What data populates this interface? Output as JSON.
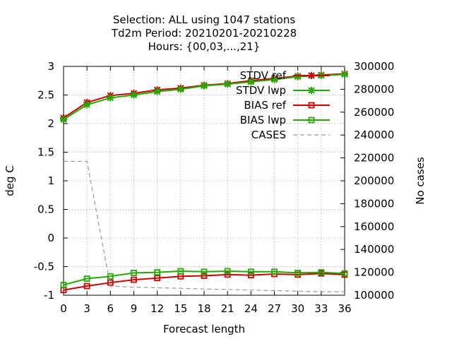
{
  "chart_data": {
    "type": "line",
    "title_lines": [
      "Selection: ALL using  1047 stations",
      "Td2m   Period: 20210201-20210228",
      "Hours: {00,03,...,21}"
    ],
    "xlabel": "Forecast length",
    "ylabel": "deg C",
    "y2label": "No cases",
    "grid": true,
    "legend_position": "top-right",
    "x": [
      0,
      3,
      6,
      9,
      12,
      15,
      18,
      21,
      24,
      27,
      30,
      33,
      36
    ],
    "xlim": [
      0,
      36
    ],
    "ylim": [
      -1,
      3
    ],
    "y2lim": [
      100000,
      300000
    ],
    "x_ticks": [
      0,
      3,
      6,
      9,
      12,
      15,
      18,
      21,
      24,
      27,
      30,
      33,
      36
    ],
    "y_ticks": [
      -1,
      -0.5,
      0,
      0.5,
      1,
      1.5,
      2,
      2.5,
      3
    ],
    "y2_ticks": [
      100000,
      120000,
      140000,
      160000,
      180000,
      200000,
      220000,
      240000,
      260000,
      280000,
      300000
    ],
    "series": [
      {
        "name": "STDV ref",
        "axis": "y",
        "marker": "star",
        "color": "#cc0000",
        "dash": "",
        "values": [
          2.1,
          2.37,
          2.49,
          2.53,
          2.59,
          2.62,
          2.67,
          2.7,
          2.75,
          2.79,
          2.83,
          2.85,
          2.87
        ]
      },
      {
        "name": "STDV lwp",
        "axis": "y",
        "marker": "star",
        "color": "#22aa00",
        "dash": "",
        "values": [
          2.07,
          2.33,
          2.45,
          2.5,
          2.56,
          2.6,
          2.66,
          2.69,
          2.73,
          2.77,
          2.82,
          2.84,
          2.86
        ]
      },
      {
        "name": "BIAS ref",
        "axis": "y",
        "marker": "square",
        "color": "#cc0000",
        "dash": "",
        "values": [
          -0.91,
          -0.84,
          -0.78,
          -0.73,
          -0.7,
          -0.67,
          -0.66,
          -0.64,
          -0.65,
          -0.63,
          -0.64,
          -0.62,
          -0.64
        ]
      },
      {
        "name": "BIAS lwp",
        "axis": "y",
        "marker": "square",
        "color": "#22aa00",
        "dash": "",
        "values": [
          -0.82,
          -0.71,
          -0.67,
          -0.61,
          -0.6,
          -0.58,
          -0.59,
          -0.58,
          -0.59,
          -0.59,
          -0.61,
          -0.6,
          -0.62
        ]
      },
      {
        "name": "CASES",
        "axis": "y2",
        "marker": "none",
        "color": "#999999",
        "dash": "6,4",
        "values": [
          217000,
          217000,
          108000,
          107000,
          106500,
          106000,
          105500,
          105000,
          104500,
          104000,
          103500,
          103000,
          103000
        ]
      }
    ]
  }
}
